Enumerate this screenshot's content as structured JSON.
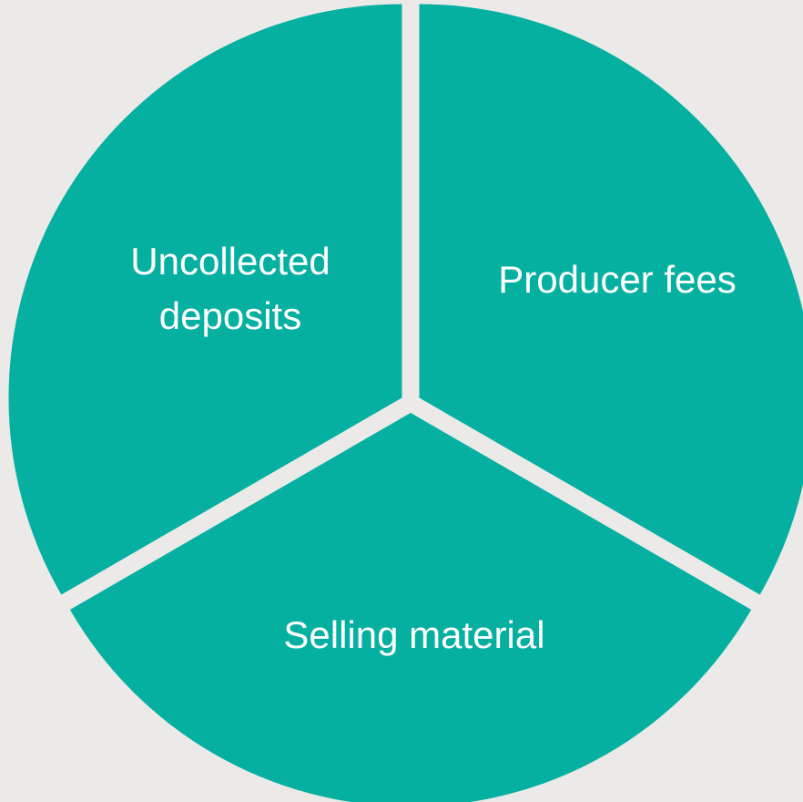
{
  "nodes": [
    {
      "lines": [
        "Uncollected",
        "deposits"
      ]
    },
    {
      "lines": [
        "Producer fees"
      ]
    },
    {
      "lines": [
        "Selling material"
      ]
    }
  ]
}
